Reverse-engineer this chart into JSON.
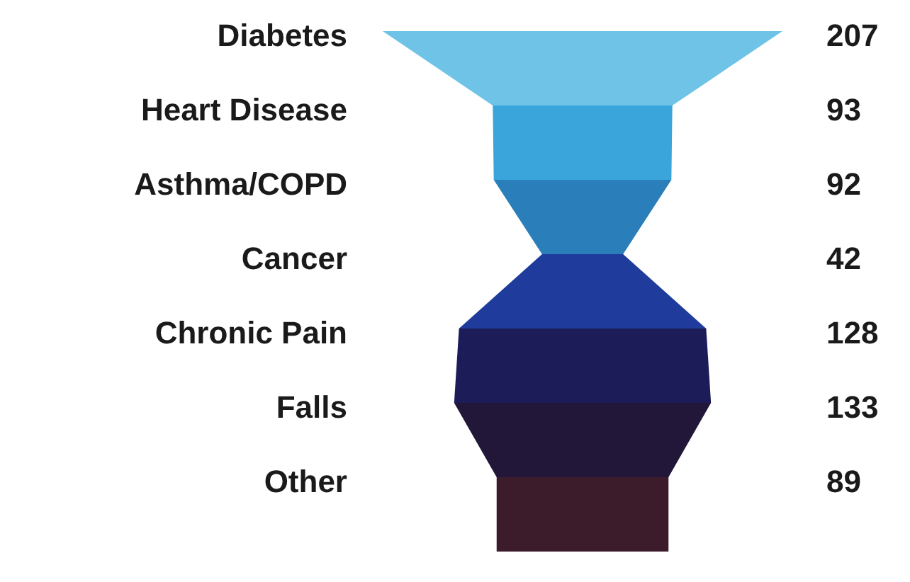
{
  "chart_data": {
    "type": "other",
    "categories": [
      "Diabetes",
      "Heart Disease",
      "Asthma/COPD",
      "Cancer",
      "Chronic Pain",
      "Falls",
      "Other"
    ],
    "values": [
      207,
      93,
      92,
      42,
      128,
      133,
      89
    ],
    "colors": [
      "#6ec3e6",
      "#3aa5da",
      "#2a7fba",
      "#1f3c9c",
      "#1c1c58",
      "#221738",
      "#3c1b2b"
    ],
    "data_labels": true
  }
}
